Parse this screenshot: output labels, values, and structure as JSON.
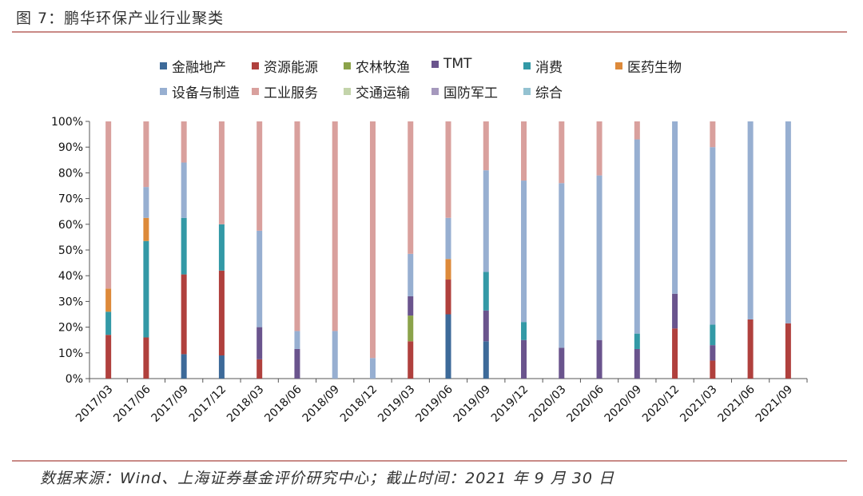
{
  "figure": {
    "title": "图 7：鹏华环保产业行业聚类",
    "source": "数据来源：Wind、上海证券基金评价研究中心；截止时间：2021 年 9 月 30 日"
  },
  "chart_data": {
    "type": "bar",
    "stacked": true,
    "percent_stacked": true,
    "title": "",
    "xlabel": "",
    "ylabel": "",
    "ylim": [
      0,
      100
    ],
    "yticks": [
      "0%",
      "10%",
      "20%",
      "30%",
      "40%",
      "50%",
      "60%",
      "70%",
      "80%",
      "90%",
      "100%"
    ],
    "grid": false,
    "legend_position": "top",
    "categories": [
      "2017/03",
      "2017/06",
      "2017/09",
      "2017/12",
      "2018/03",
      "2018/06",
      "2018/09",
      "2018/12",
      "2019/03",
      "2019/06",
      "2019/09",
      "2019/12",
      "2020/03",
      "2020/06",
      "2020/09",
      "2020/12",
      "2021/03",
      "2021/06",
      "2021/09"
    ],
    "series": [
      {
        "name": "金融地产",
        "color": "#3d6a99",
        "values": [
          0,
          0,
          9.5,
          9,
          0,
          0,
          0,
          0,
          0,
          25,
          14.5,
          0,
          0,
          0,
          0,
          0,
          0,
          0,
          0
        ]
      },
      {
        "name": "资源能源",
        "color": "#b0403d",
        "values": [
          17,
          16,
          31,
          33,
          7.5,
          0,
          0,
          0,
          14.5,
          13.5,
          0,
          0,
          0,
          0,
          0,
          19.5,
          7,
          23,
          21.5
        ]
      },
      {
        "name": "农林牧渔",
        "color": "#8ba34a",
        "values": [
          0,
          0,
          0,
          0,
          0,
          0,
          0,
          0,
          10,
          0,
          0,
          0,
          0,
          0,
          0,
          0,
          0,
          0,
          0
        ]
      },
      {
        "name": "TMT",
        "color": "#6a548d",
        "values": [
          0,
          0,
          0,
          0,
          12.5,
          11.5,
          0,
          0,
          7.5,
          0,
          12,
          15,
          12,
          15,
          11.5,
          13.5,
          6,
          0,
          0
        ]
      },
      {
        "name": "消费",
        "color": "#3399a6",
        "values": [
          9,
          37.5,
          22,
          18,
          0,
          0,
          0,
          0,
          0,
          0,
          15,
          7,
          0,
          0,
          6,
          0,
          8,
          0,
          0
        ]
      },
      {
        "name": "医药生物",
        "color": "#dd8a3a",
        "values": [
          9,
          9,
          0,
          0,
          0,
          0,
          0,
          0,
          0,
          8,
          0,
          0,
          0,
          0,
          0,
          0,
          0,
          0,
          0
        ]
      },
      {
        "name": "设备与制造",
        "color": "#97afd1",
        "values": [
          0,
          12,
          21.5,
          0,
          37.5,
          7,
          18.5,
          8,
          16.5,
          16,
          39.5,
          55,
          64,
          64,
          75.5,
          67,
          69,
          77,
          78.5
        ]
      },
      {
        "name": "工业服务",
        "color": "#d9a09d",
        "values": [
          65,
          25.5,
          16,
          40,
          42.5,
          81.5,
          81.5,
          92,
          51.5,
          37.5,
          19,
          23,
          24,
          21,
          7,
          0,
          10,
          0,
          0
        ]
      },
      {
        "name": "交通运输",
        "color": "#c3d4aa",
        "values": [
          0,
          0,
          0,
          0,
          0,
          0,
          0,
          0,
          0,
          0,
          0,
          0,
          0,
          0,
          0,
          0,
          0,
          0,
          0
        ]
      },
      {
        "name": "国防军工",
        "color": "#a598bd",
        "values": [
          0,
          0,
          0,
          0,
          0,
          0,
          0,
          0,
          0,
          0,
          0,
          0,
          0,
          0,
          0,
          0,
          0,
          0,
          0
        ]
      },
      {
        "name": "综合",
        "color": "#94c2d1",
        "values": [
          0,
          0,
          0,
          0,
          0,
          0,
          0,
          0,
          0,
          0,
          0,
          0,
          0,
          0,
          0,
          0,
          0,
          0,
          0
        ]
      }
    ]
  }
}
